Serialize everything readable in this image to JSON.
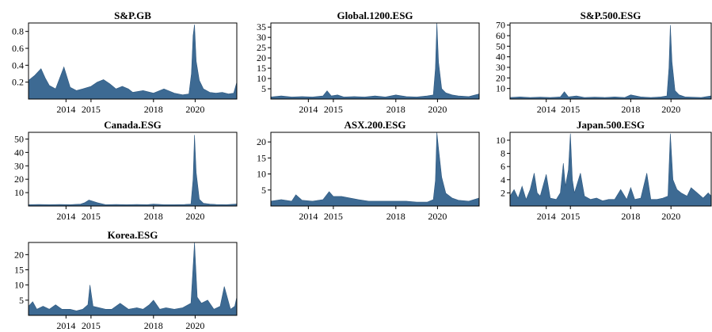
{
  "figure": {
    "x_ticks": [
      "2014",
      "2015",
      "2018",
      "2020"
    ],
    "x_tick_values": [
      2013.8,
      2015.0,
      2018.0,
      2020.0
    ]
  },
  "chart_data": [
    {
      "type": "area",
      "title": "S&P.GB",
      "xlim": [
        2012.0,
        2022.0
      ],
      "ylim": [
        0.0,
        0.9
      ],
      "yticks": [
        0.2,
        0.4,
        0.6,
        0.8
      ],
      "ytick_labels": [
        "0.2",
        "0.4",
        "0.6",
        "0.8"
      ],
      "x": [
        2012.0,
        2012.3,
        2012.6,
        2012.8,
        2013.0,
        2013.3,
        2013.7,
        2014.0,
        2014.3,
        2014.6,
        2015.0,
        2015.3,
        2015.6,
        2015.9,
        2016.2,
        2016.5,
        2016.8,
        2017.0,
        2017.5,
        2018.0,
        2018.5,
        2019.0,
        2019.4,
        2019.7,
        2019.82,
        2019.9,
        2019.97,
        2020.05,
        2020.2,
        2020.4,
        2020.7,
        2021.0,
        2021.3,
        2021.6,
        2021.85,
        2022.0
      ],
      "values": [
        0.22,
        0.28,
        0.36,
        0.25,
        0.16,
        0.12,
        0.38,
        0.14,
        0.1,
        0.12,
        0.15,
        0.2,
        0.23,
        0.18,
        0.12,
        0.15,
        0.12,
        0.08,
        0.1,
        0.07,
        0.12,
        0.07,
        0.05,
        0.06,
        0.3,
        0.75,
        0.88,
        0.45,
        0.22,
        0.12,
        0.08,
        0.07,
        0.08,
        0.06,
        0.07,
        0.2
      ]
    },
    {
      "type": "area",
      "title": "Global.1200.ESG",
      "xlim": [
        2012.0,
        2022.0
      ],
      "ylim": [
        0,
        37
      ],
      "yticks": [
        5,
        10,
        15,
        20,
        25,
        30,
        35
      ],
      "ytick_labels": [
        "5",
        "10",
        "15",
        "20",
        "25",
        "30",
        "35"
      ],
      "x": [
        2012.0,
        2012.5,
        2013.0,
        2013.5,
        2014.0,
        2014.5,
        2014.7,
        2014.9,
        2015.2,
        2015.5,
        2016.0,
        2016.5,
        2017.0,
        2017.5,
        2018.0,
        2018.5,
        2019.0,
        2019.5,
        2019.8,
        2019.9,
        2019.97,
        2020.05,
        2020.2,
        2020.4,
        2020.7,
        2021.0,
        2021.5,
        2022.0
      ],
      "values": [
        1.0,
        1.5,
        1.0,
        1.2,
        1.0,
        1.5,
        4.0,
        1.5,
        2.0,
        1.0,
        1.2,
        1.0,
        1.5,
        1.0,
        2.0,
        1.2,
        1.0,
        1.5,
        2.0,
        15.0,
        37.0,
        18.0,
        5.0,
        3.0,
        2.0,
        1.5,
        1.2,
        2.5
      ]
    },
    {
      "type": "area",
      "title": "S&P.500.ESG",
      "xlim": [
        2012.0,
        2022.0
      ],
      "ylim": [
        0,
        72
      ],
      "yticks": [
        10,
        20,
        30,
        40,
        50,
        60,
        70
      ],
      "ytick_labels": [
        "10",
        "20",
        "30",
        "40",
        "50",
        "60",
        "70"
      ],
      "x": [
        2012.0,
        2012.5,
        2013.0,
        2013.5,
        2014.0,
        2014.5,
        2014.7,
        2014.9,
        2015.3,
        2015.7,
        2016.2,
        2016.7,
        2017.2,
        2017.7,
        2018.0,
        2018.5,
        2019.0,
        2019.5,
        2019.8,
        2019.9,
        2019.97,
        2020.05,
        2020.2,
        2020.4,
        2020.7,
        2021.0,
        2021.5,
        2022.0
      ],
      "values": [
        1.5,
        2.0,
        1.5,
        1.8,
        1.5,
        2.0,
        7.0,
        2.0,
        3.0,
        1.5,
        1.8,
        1.5,
        2.0,
        1.5,
        4.0,
        2.0,
        1.5,
        2.0,
        3.0,
        30.0,
        70.0,
        35.0,
        8.0,
        4.0,
        2.0,
        1.8,
        1.5,
        3.0
      ]
    },
    {
      "type": "area",
      "title": "Canada.ESG",
      "xlim": [
        2012.0,
        2022.0
      ],
      "ylim": [
        0,
        55
      ],
      "yticks": [
        10,
        20,
        30,
        40,
        50
      ],
      "ytick_labels": [
        "10",
        "20",
        "30",
        "40",
        "50"
      ],
      "x": [
        2012.0,
        2012.5,
        2013.0,
        2013.5,
        2014.0,
        2014.5,
        2014.7,
        2014.9,
        2015.3,
        2015.7,
        2016.2,
        2016.7,
        2017.2,
        2017.7,
        2018.0,
        2018.5,
        2019.0,
        2019.5,
        2019.8,
        2019.9,
        2019.97,
        2020.05,
        2020.2,
        2020.4,
        2020.7,
        2021.0,
        2021.5,
        2022.0
      ],
      "values": [
        1.0,
        1.2,
        1.0,
        1.2,
        1.0,
        1.5,
        2.5,
        4.5,
        2.5,
        1.0,
        1.2,
        1.0,
        1.2,
        1.0,
        1.5,
        1.0,
        1.0,
        1.2,
        1.5,
        20.0,
        53.0,
        25.0,
        5.0,
        2.0,
        1.5,
        1.2,
        1.0,
        1.5
      ]
    },
    {
      "type": "area",
      "title": "ASX.200.ESG",
      "xlim": [
        2012.0,
        2022.0
      ],
      "ylim": [
        0,
        23
      ],
      "yticks": [
        5,
        10,
        15,
        20
      ],
      "ytick_labels": [
        "5",
        "10",
        "15",
        "20"
      ],
      "x": [
        2012.0,
        2012.5,
        2013.0,
        2013.2,
        2013.5,
        2014.0,
        2014.5,
        2014.8,
        2015.0,
        2015.4,
        2015.8,
        2016.2,
        2016.7,
        2017.2,
        2017.7,
        2018.0,
        2018.5,
        2019.0,
        2019.5,
        2019.8,
        2019.9,
        2019.97,
        2020.05,
        2020.2,
        2020.4,
        2020.7,
        2021.0,
        2021.5,
        2022.0
      ],
      "values": [
        1.5,
        2.0,
        1.5,
        3.5,
        1.8,
        1.5,
        2.0,
        4.5,
        3.0,
        3.0,
        2.5,
        2.0,
        1.5,
        1.5,
        1.5,
        1.5,
        1.5,
        1.2,
        1.2,
        2.0,
        8.0,
        23.0,
        18.0,
        9.0,
        4.0,
        2.5,
        1.8,
        1.5,
        2.5
      ]
    },
    {
      "type": "area",
      "title": "Japan.500.ESG",
      "xlim": [
        2012.0,
        2022.0
      ],
      "ylim": [
        0,
        11.2
      ],
      "yticks": [
        2,
        4,
        6,
        8,
        10
      ],
      "ytick_labels": [
        "2",
        "4",
        "6",
        "8",
        "10"
      ],
      "x": [
        2012.0,
        2012.2,
        2012.4,
        2012.6,
        2012.8,
        2013.0,
        2013.2,
        2013.35,
        2013.5,
        2013.8,
        2014.0,
        2014.3,
        2014.5,
        2014.65,
        2014.75,
        2014.9,
        2015.0,
        2015.1,
        2015.2,
        2015.35,
        2015.5,
        2015.7,
        2016.0,
        2016.3,
        2016.6,
        2016.9,
        2017.2,
        2017.5,
        2017.8,
        2018.0,
        2018.2,
        2018.5,
        2018.8,
        2019.0,
        2019.3,
        2019.6,
        2019.85,
        2019.97,
        2020.1,
        2020.3,
        2020.5,
        2020.8,
        2021.0,
        2021.3,
        2021.6,
        2021.85,
        2022.0
      ],
      "values": [
        1.5,
        2.5,
        1.2,
        3.0,
        1.0,
        2.5,
        5.0,
        2.0,
        1.5,
        4.8,
        1.2,
        1.0,
        2.0,
        6.5,
        3.0,
        5.5,
        11.0,
        4.0,
        2.0,
        3.5,
        5.0,
        1.5,
        1.0,
        1.2,
        0.8,
        1.0,
        1.0,
        2.5,
        1.0,
        2.8,
        1.0,
        1.2,
        5.0,
        1.0,
        1.0,
        1.2,
        1.5,
        11.0,
        4.0,
        2.5,
        2.0,
        1.5,
        2.8,
        2.0,
        1.2,
        2.0,
        1.5
      ]
    },
    {
      "type": "area",
      "title": "Korea.ESG",
      "xlim": [
        2012.0,
        2022.0
      ],
      "ylim": [
        0,
        24
      ],
      "yticks": [
        5,
        10,
        15,
        20
      ],
      "ytick_labels": [
        "5",
        "10",
        "15",
        "20"
      ],
      "x": [
        2012.0,
        2012.2,
        2012.4,
        2012.7,
        2013.0,
        2013.3,
        2013.6,
        2014.0,
        2014.3,
        2014.6,
        2014.85,
        2014.95,
        2015.1,
        2015.4,
        2015.7,
        2016.0,
        2016.4,
        2016.8,
        2017.2,
        2017.5,
        2017.8,
        2018.0,
        2018.3,
        2018.6,
        2019.0,
        2019.4,
        2019.8,
        2019.97,
        2020.1,
        2020.3,
        2020.6,
        2020.9,
        2021.2,
        2021.4,
        2021.7,
        2021.9,
        2022.0
      ],
      "values": [
        3.0,
        4.5,
        2.0,
        3.0,
        2.0,
        3.5,
        2.0,
        2.0,
        1.5,
        2.0,
        3.5,
        10.0,
        3.0,
        2.5,
        2.0,
        2.0,
        4.0,
        2.0,
        2.5,
        2.0,
        3.5,
        5.0,
        2.0,
        2.5,
        2.0,
        2.5,
        4.0,
        24.0,
        6.0,
        4.0,
        5.0,
        2.0,
        3.0,
        9.5,
        2.0,
        3.0,
        6.0
      ]
    }
  ]
}
